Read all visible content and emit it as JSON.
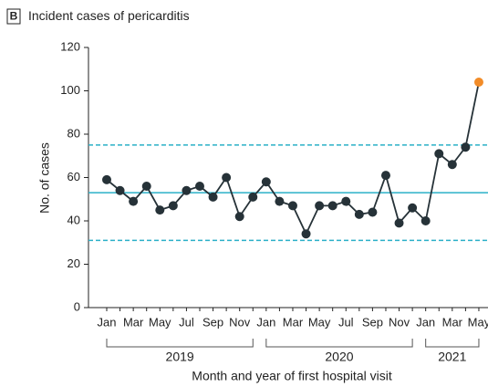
{
  "chart_data": {
    "type": "line",
    "panel_label": "B",
    "title": "Incident cases of pericarditis",
    "xlabel": "Month and year of first hospital visit",
    "ylabel": "No. of cases",
    "categories": [
      "Jan",
      null,
      "Mar",
      null,
      "May",
      null,
      "Jul",
      null,
      "Sep",
      null,
      "Nov",
      null,
      "Jan",
      null,
      "Mar",
      null,
      "May",
      null,
      "Jul",
      null,
      "Sep",
      null,
      "Nov",
      null,
      "Jan",
      null,
      "Mar",
      null,
      "May"
    ],
    "groups": [
      "2019",
      "2020",
      "2021"
    ],
    "series": [
      {
        "name": "Incident cases",
        "color": "#263238",
        "values": [
          59,
          54,
          49,
          56,
          45,
          47,
          54,
          56,
          51,
          60,
          42,
          51,
          58,
          49,
          47,
          34,
          47,
          47,
          49,
          43,
          44,
          61,
          39,
          46,
          40,
          71,
          66,
          74,
          104
        ],
        "point_colors": [
          "#263238",
          "#263238",
          "#263238",
          "#263238",
          "#263238",
          "#263238",
          "#263238",
          "#263238",
          "#263238",
          "#263238",
          "#263238",
          "#263238",
          "#263238",
          "#263238",
          "#263238",
          "#263238",
          "#263238",
          "#263238",
          "#263238",
          "#263238",
          "#263238",
          "#263238",
          "#263238",
          "#263238",
          "#263238",
          "#263238",
          "#263238",
          "#263238",
          "#f28c28"
        ]
      }
    ],
    "reference_lines": [
      {
        "value": 53,
        "style": "solid",
        "color": "#2bb0c8"
      },
      {
        "value": 75,
        "style": "dashed",
        "color": "#2bb0c8"
      },
      {
        "value": 31,
        "style": "dashed",
        "color": "#2bb0c8"
      }
    ],
    "ylim": [
      0,
      120
    ],
    "yticks": [
      0,
      20,
      40,
      60,
      80,
      100,
      120
    ],
    "grid": false
  }
}
